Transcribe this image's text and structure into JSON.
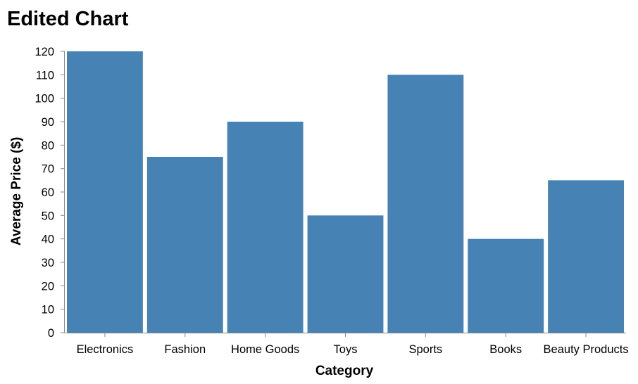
{
  "chart_data": {
    "type": "bar",
    "title": "Edited Chart",
    "xlabel": "Category",
    "ylabel": "Average Price ($)",
    "categories": [
      "Electronics",
      "Fashion",
      "Home Goods",
      "Toys",
      "Sports",
      "Books",
      "Beauty Products"
    ],
    "values": [
      120,
      75,
      90,
      50,
      110,
      40,
      65
    ],
    "ylim": [
      0,
      120
    ],
    "yticks": [
      0,
      10,
      20,
      30,
      40,
      50,
      60,
      70,
      80,
      90,
      100,
      110,
      120
    ],
    "grid": false,
    "legend": "none",
    "bar_color": "#4682b4",
    "axis_color": "#888888"
  }
}
